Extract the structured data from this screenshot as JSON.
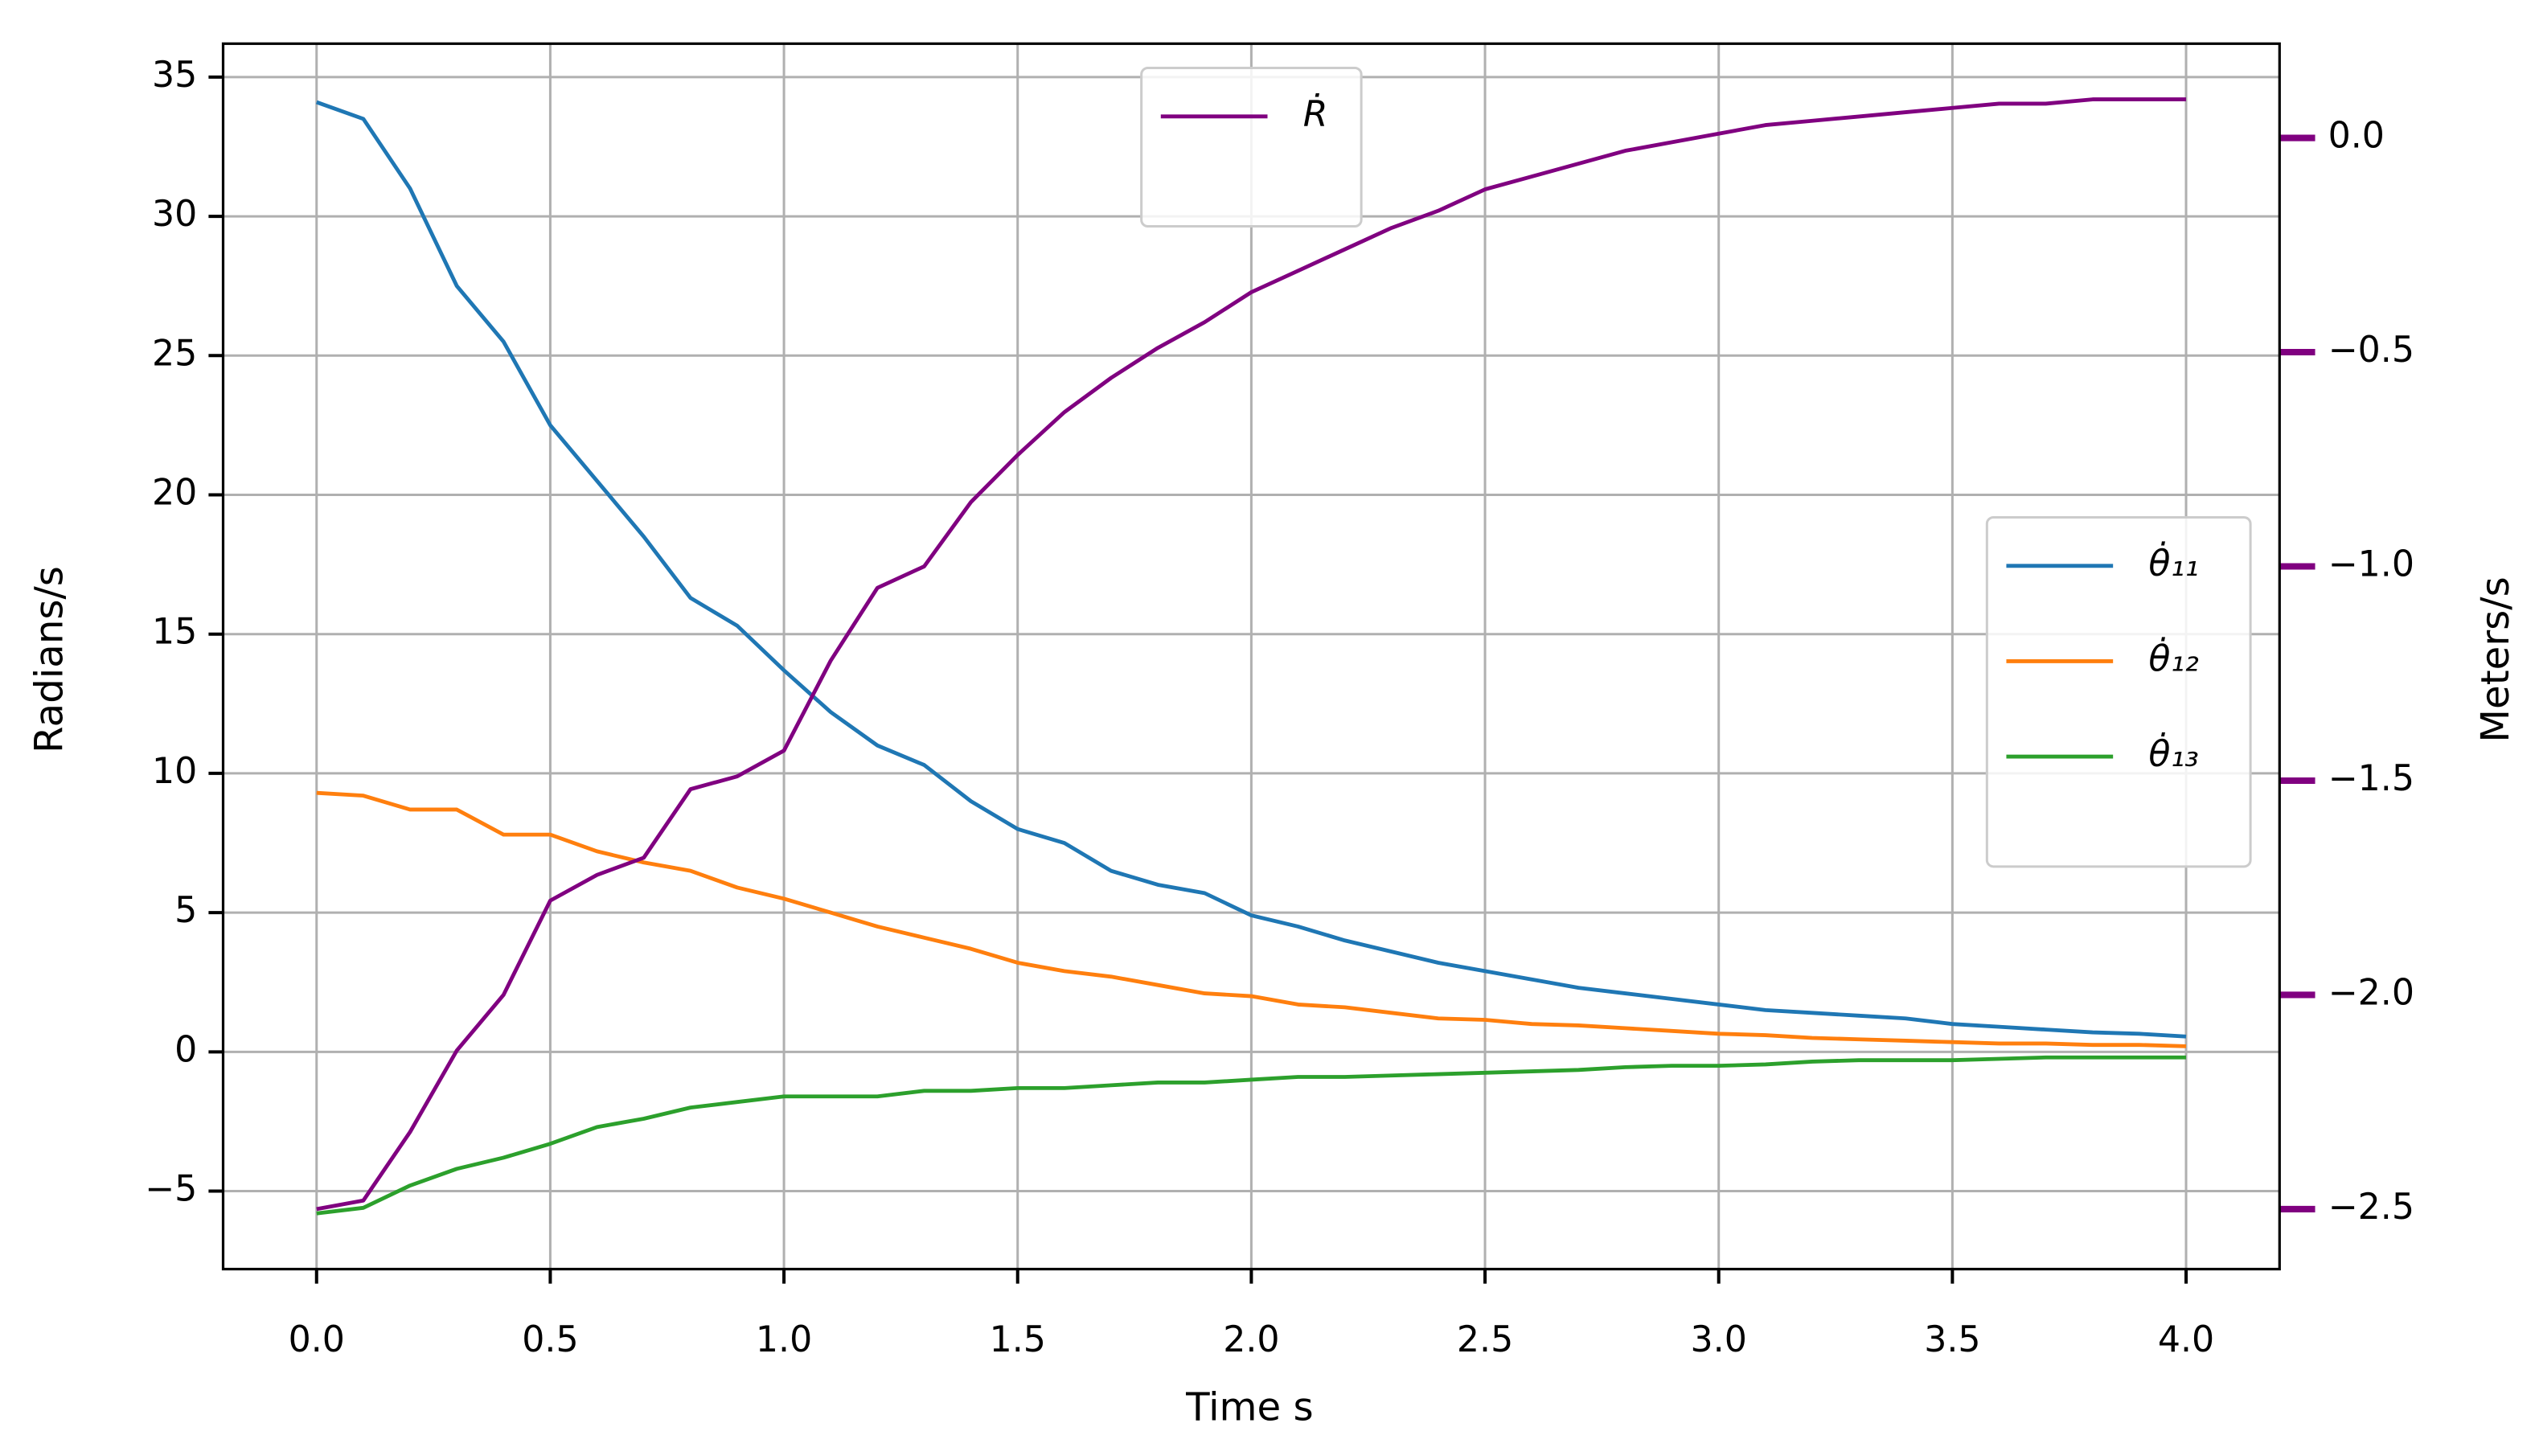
{
  "chart_data": {
    "type": "line",
    "x_label": "Time s",
    "y_label": "Radians/s",
    "y2_label": "Meters/s",
    "x": [
      0,
      0.1,
      0.2,
      0.3,
      0.4,
      0.5,
      0.6,
      0.7,
      0.8,
      0.9,
      1.0,
      1.1,
      1.2,
      1.3,
      1.4,
      1.5,
      1.6,
      1.7,
      1.8,
      1.9,
      2.0,
      2.1,
      2.2,
      2.3,
      2.4,
      2.5,
      2.6,
      2.7,
      2.8,
      2.9,
      3.0,
      3.1,
      3.2,
      3.3,
      3.4,
      3.5,
      3.6,
      3.7,
      3.8,
      3.9,
      4.0
    ],
    "series": [
      {
        "name": "θ̇₁₁",
        "color": "#1f77b4",
        "values": [
          34.1,
          33.5,
          31.0,
          27.5,
          25.5,
          22.5,
          20.5,
          18.5,
          16.3,
          15.3,
          13.7,
          12.2,
          11.0,
          10.3,
          9.0,
          8.0,
          7.5,
          6.5,
          6.0,
          5.7,
          4.9,
          4.5,
          4.0,
          3.6,
          3.2,
          2.9,
          2.6,
          2.3,
          2.1,
          1.9,
          1.7,
          1.5,
          1.4,
          1.3,
          1.2,
          1.0,
          0.9,
          0.8,
          0.7,
          0.65,
          0.55
        ]
      },
      {
        "name": "θ̇₁₂",
        "color": "#ff7f0e",
        "values": [
          9.3,
          9.2,
          8.7,
          8.7,
          7.8,
          7.8,
          7.2,
          6.8,
          6.5,
          5.9,
          5.5,
          5.0,
          4.5,
          4.1,
          3.7,
          3.2,
          2.9,
          2.7,
          2.4,
          2.1,
          2.0,
          1.7,
          1.6,
          1.4,
          1.2,
          1.15,
          1.0,
          0.95,
          0.85,
          0.75,
          0.65,
          0.6,
          0.5,
          0.45,
          0.4,
          0.35,
          0.3,
          0.3,
          0.25,
          0.25,
          0.2
        ]
      },
      {
        "name": "θ̇₁₃",
        "color": "#2ca02c",
        "values": [
          -5.8,
          -5.6,
          -4.8,
          -4.2,
          -3.8,
          -3.3,
          -2.7,
          -2.4,
          -2.0,
          -1.8,
          -1.6,
          -1.6,
          -1.6,
          -1.4,
          -1.4,
          -1.3,
          -1.3,
          -1.2,
          -1.1,
          -1.1,
          -1.0,
          -0.9,
          -0.9,
          -0.85,
          -0.8,
          -0.75,
          -0.7,
          -0.65,
          -0.55,
          -0.5,
          -0.5,
          -0.45,
          -0.35,
          -0.3,
          -0.3,
          -0.3,
          -0.25,
          -0.2,
          -0.2,
          -0.2,
          -0.2
        ]
      },
      {
        "name": "Ṙ",
        "color": "#800080",
        "axis": "y2",
        "values": [
          -2.5,
          -2.48,
          -2.32,
          -2.13,
          -2.0,
          -1.78,
          -1.72,
          -1.68,
          -1.52,
          -1.49,
          -1.43,
          -1.22,
          -1.05,
          -1.0,
          -0.85,
          -0.74,
          -0.64,
          -0.56,
          -0.49,
          -0.43,
          -0.36,
          -0.31,
          -0.26,
          -0.21,
          -0.17,
          -0.12,
          -0.09,
          -0.06,
          -0.03,
          -0.01,
          0.01,
          0.03,
          0.04,
          0.05,
          0.06,
          0.07,
          0.08,
          0.08,
          0.09,
          0.09,
          0.09
        ]
      }
    ],
    "xlim": [
      -0.2,
      4.2
    ],
    "xticks": [
      {
        "value": 0,
        "label": "0.0"
      },
      0.5,
      {
        "value": 1,
        "label": "1.0"
      },
      1.5,
      {
        "value": 2,
        "label": "2.0"
      },
      2.5,
      {
        "value": 3,
        "label": "3.0"
      },
      3.5,
      {
        "value": 4,
        "label": "4.0"
      }
    ],
    "ylim": [
      -7.8,
      36.2
    ],
    "yticks": [
      {
        "value": -5,
        "label": "−5"
      },
      0,
      5,
      10,
      15,
      20,
      25,
      30,
      35
    ],
    "y2lim": [
      -2.64,
      0.22
    ],
    "y2ticks": [
      {
        "value": -2.5,
        "label": "−2.5"
      },
      {
        "value": -2,
        "label": "−2.0"
      },
      {
        "value": -1.5,
        "label": "−1.5"
      },
      {
        "value": -1,
        "label": "−1.0"
      },
      {
        "value": -0.5,
        "label": "−0.5"
      },
      {
        "value": 0,
        "label": "0.0"
      }
    ],
    "y2_color": "#800080",
    "grid": true
  }
}
